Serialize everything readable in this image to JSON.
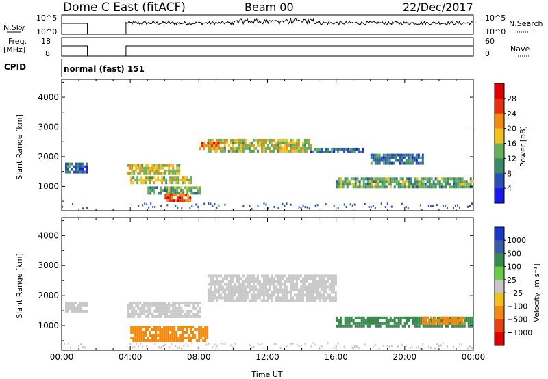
{
  "header": {
    "title": "Dome C East (fitACF)",
    "beam": "Beam 00",
    "date": "22/Dec/2017"
  },
  "strips": {
    "nsky_label": "N.Sky",
    "nsky_tick_top": "10^5",
    "nsky_tick_bottom": "10^0",
    "nsearch_label": "N.Search",
    "nsearch_tick_top": "10^5",
    "nsearch_tick_bottom": "10^0",
    "freq_label_line1": "Freq.",
    "freq_label_line2": "[MHz]",
    "freq_tick_top": "18",
    "freq_tick_bottom": "8",
    "nave_label": "Nave",
    "nave_tick_top": "60",
    "nave_tick_bottom": "0",
    "cpid_label": "CPID",
    "cpid_value": "normal (fast) 151"
  },
  "chart_data": [
    {
      "type": "heatmap",
      "panel": "power",
      "ylabel": "Slant Range [km]",
      "ylim": [
        180,
        4600
      ],
      "yticks": [
        "1000",
        "2000",
        "3000",
        "4000"
      ],
      "colorbar_label": "Power [dB]",
      "colorbar_ticks": [
        "4",
        "8",
        "12",
        "16",
        "20",
        "24",
        "28"
      ],
      "colorbar_colors": [
        "#1a1af0",
        "#2a4fb8",
        "#3a8a6a",
        "#66b05a",
        "#f0c020",
        "#f08a10",
        "#e83010",
        "#e00000"
      ],
      "gaps_ut_hours": [
        [
          1.5,
          3.75
        ]
      ],
      "echo_regions": [
        {
          "t": [
            0.2,
            1.4
          ],
          "r": [
            1450,
            1800
          ],
          "level": 8
        },
        {
          "t": [
            3.8,
            6.8
          ],
          "r": [
            1450,
            1750
          ],
          "level": 16
        },
        {
          "t": [
            4.0,
            7.5
          ],
          "r": [
            1150,
            1350
          ],
          "level": 16
        },
        {
          "t": [
            5.0,
            8.0
          ],
          "r": [
            750,
            1000
          ],
          "level": 12
        },
        {
          "t": [
            6.0,
            7.5
          ],
          "r": [
            500,
            750
          ],
          "level": 24
        },
        {
          "t": [
            8.5,
            14.5
          ],
          "r": [
            2200,
            2600
          ],
          "level": 16
        },
        {
          "t": [
            8.0,
            9.2
          ],
          "r": [
            2300,
            2500
          ],
          "level": 24
        },
        {
          "t": [
            14.5,
            17.5
          ],
          "r": [
            2150,
            2300
          ],
          "level": 8
        },
        {
          "t": [
            16.0,
            24.0
          ],
          "r": [
            950,
            1300
          ],
          "level": 12
        },
        {
          "t": [
            18.0,
            21.0
          ],
          "r": [
            1750,
            2100
          ],
          "level": 8
        }
      ]
    },
    {
      "type": "heatmap",
      "panel": "velocity",
      "ylabel": "Slant Range [km]",
      "xlabel": "Time UT",
      "ylim": [
        180,
        4600
      ],
      "yticks": [
        "1000",
        "2000",
        "3000",
        "4000"
      ],
      "xticks": [
        "00:00",
        "04:00",
        "08:00",
        "12:00",
        "16:00",
        "20:00",
        "00:00"
      ],
      "colorbar_label": "Velocity [m s⁻¹]",
      "colorbar_ticks": [
        "1000",
        "500",
        "100",
        "25",
        "−25",
        "−100",
        "−500",
        "−1000"
      ],
      "colorbar_colors": [
        "#1a38c8",
        "#3a5ca8",
        "#3a8a50",
        "#66cc44",
        "#c8c8c8",
        "#f0c020",
        "#f08a10",
        "#e84010",
        "#e00000"
      ],
      "gaps_ut_hours": [
        [
          1.5,
          3.75
        ]
      ],
      "echo_regions": [
        {
          "t": [
            0.2,
            1.4
          ],
          "r": [
            1450,
            1800
          ],
          "level": 0
        },
        {
          "t": [
            3.8,
            8.0
          ],
          "r": [
            1300,
            1800
          ],
          "level": 0
        },
        {
          "t": [
            4.0,
            8.5
          ],
          "r": [
            500,
            1000
          ],
          "level": -100
        },
        {
          "t": [
            8.5,
            16.0
          ],
          "r": [
            1800,
            2700
          ],
          "level": 0
        },
        {
          "t": [
            16.0,
            24.0
          ],
          "r": [
            950,
            1300
          ],
          "level": 100
        },
        {
          "t": [
            21.0,
            23.5
          ],
          "r": [
            1050,
            1300
          ],
          "level": -100
        }
      ]
    }
  ]
}
